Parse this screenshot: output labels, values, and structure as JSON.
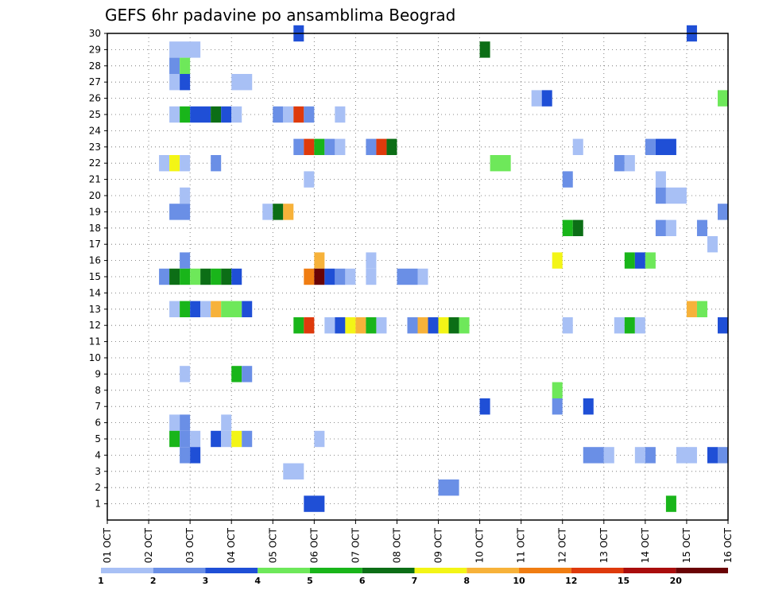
{
  "chart_data": {
    "type": "heatmap",
    "title": "GEFS 6hr padavine po ansamblima Beograd",
    "x_ticks": [
      "01 OCT",
      "02 OCT",
      "03 OCT",
      "04 OCT",
      "05 OCT",
      "06 OCT",
      "07 OCT",
      "08 OCT",
      "09 OCT",
      "10 OCT",
      "11 OCT",
      "12 OCT",
      "13 OCT",
      "14 OCT",
      "15 OCT",
      "16 OCT"
    ],
    "y_ticks": [
      "1",
      "2",
      "3",
      "4",
      "5",
      "6",
      "7",
      "8",
      "9",
      "10",
      "11",
      "12",
      "13",
      "14",
      "15",
      "16",
      "17",
      "18",
      "19",
      "20",
      "21",
      "22",
      "23",
      "24",
      "25",
      "26",
      "27",
      "28",
      "29",
      "30"
    ],
    "xlim_days": [
      1,
      16
    ],
    "ylim_members": [
      0,
      30
    ],
    "time_step_hours": 6,
    "grid": true,
    "legend_placement": "bottom",
    "color_levels": [
      {
        "label": "1",
        "color": "#a8c0f5"
      },
      {
        "label": "2",
        "color": "#6a8fe6"
      },
      {
        "label": "3",
        "color": "#1f4fd6"
      },
      {
        "label": "4",
        "color": "#6ee85a"
      },
      {
        "label": "5",
        "color": "#19b51a"
      },
      {
        "label": "6",
        "color": "#0c6e16"
      },
      {
        "label": "7",
        "color": "#f3f516"
      },
      {
        "label": "8",
        "color": "#f7b23a"
      },
      {
        "label": "10",
        "color": "#f07d12"
      },
      {
        "label": "12",
        "color": "#de3a0c"
      },
      {
        "label": "15",
        "color": "#a90d0c"
      },
      {
        "label": "20",
        "color": "#6a0305"
      }
    ],
    "note_cells": "Each cell: member (row), day start/end in fractional days since 01 OCT 00Z, color level index (0-11).",
    "cells": [
      {
        "m": 30,
        "d0": 5.5,
        "d1": 5.75,
        "c": 2
      },
      {
        "m": 30,
        "d0": 15.0,
        "d1": 15.25,
        "c": 2
      },
      {
        "m": 29,
        "d0": 2.5,
        "d1": 3.25,
        "c": 0
      },
      {
        "m": 29,
        "d0": 10.0,
        "d1": 10.25,
        "c": 5
      },
      {
        "m": 28,
        "d0": 2.5,
        "d1": 2.75,
        "c": 1
      },
      {
        "m": 28,
        "d0": 2.75,
        "d1": 3.0,
        "c": 3
      },
      {
        "m": 27,
        "d0": 2.5,
        "d1": 2.75,
        "c": 0
      },
      {
        "m": 27,
        "d0": 2.75,
        "d1": 3.0,
        "c": 2
      },
      {
        "m": 27,
        "d0": 4.0,
        "d1": 4.5,
        "c": 0
      },
      {
        "m": 26,
        "d0": 11.25,
        "d1": 11.5,
        "c": 0
      },
      {
        "m": 26,
        "d0": 11.5,
        "d1": 11.75,
        "c": 2
      },
      {
        "m": 26,
        "d0": 15.75,
        "d1": 16.0,
        "c": 3
      },
      {
        "m": 25,
        "d0": 2.5,
        "d1": 2.75,
        "c": 0
      },
      {
        "m": 25,
        "d0": 2.75,
        "d1": 3.0,
        "c": 4
      },
      {
        "m": 25,
        "d0": 3.0,
        "d1": 3.5,
        "c": 2
      },
      {
        "m": 25,
        "d0": 3.5,
        "d1": 3.75,
        "c": 5
      },
      {
        "m": 25,
        "d0": 3.75,
        "d1": 4.0,
        "c": 2
      },
      {
        "m": 25,
        "d0": 4.0,
        "d1": 4.25,
        "c": 0
      },
      {
        "m": 25,
        "d0": 5.0,
        "d1": 5.25,
        "c": 1
      },
      {
        "m": 25,
        "d0": 5.25,
        "d1": 5.5,
        "c": 0
      },
      {
        "m": 25,
        "d0": 5.5,
        "d1": 5.75,
        "c": 9
      },
      {
        "m": 25,
        "d0": 5.75,
        "d1": 6.0,
        "c": 1
      },
      {
        "m": 25,
        "d0": 6.5,
        "d1": 6.75,
        "c": 0
      },
      {
        "m": 23,
        "d0": 5.5,
        "d1": 5.75,
        "c": 1
      },
      {
        "m": 23,
        "d0": 5.75,
        "d1": 6.0,
        "c": 9
      },
      {
        "m": 23,
        "d0": 6.0,
        "d1": 6.25,
        "c": 4
      },
      {
        "m": 23,
        "d0": 6.25,
        "d1": 6.5,
        "c": 1
      },
      {
        "m": 23,
        "d0": 6.5,
        "d1": 6.75,
        "c": 0
      },
      {
        "m": 23,
        "d0": 7.25,
        "d1": 7.5,
        "c": 1
      },
      {
        "m": 23,
        "d0": 7.5,
        "d1": 7.75,
        "c": 9
      },
      {
        "m": 23,
        "d0": 7.75,
        "d1": 8.0,
        "c": 5
      },
      {
        "m": 23,
        "d0": 12.25,
        "d1": 12.5,
        "c": 0
      },
      {
        "m": 23,
        "d0": 14.0,
        "d1": 14.25,
        "c": 1
      },
      {
        "m": 23,
        "d0": 14.25,
        "d1": 14.75,
        "c": 2
      },
      {
        "m": 22,
        "d0": 2.25,
        "d1": 2.5,
        "c": 0
      },
      {
        "m": 22,
        "d0": 2.5,
        "d1": 2.75,
        "c": 6
      },
      {
        "m": 22,
        "d0": 2.75,
        "d1": 3.0,
        "c": 0
      },
      {
        "m": 22,
        "d0": 3.5,
        "d1": 3.75,
        "c": 1
      },
      {
        "m": 22,
        "d0": 10.25,
        "d1": 10.75,
        "c": 3
      },
      {
        "m": 22,
        "d0": 13.25,
        "d1": 13.5,
        "c": 1
      },
      {
        "m": 22,
        "d0": 13.5,
        "d1": 13.75,
        "c": 0
      },
      {
        "m": 21,
        "d0": 5.75,
        "d1": 6.0,
        "c": 0
      },
      {
        "m": 21,
        "d0": 12.0,
        "d1": 12.25,
        "c": 1
      },
      {
        "m": 21,
        "d0": 14.25,
        "d1": 14.5,
        "c": 0
      },
      {
        "m": 20,
        "d0": 2.75,
        "d1": 3.0,
        "c": 0
      },
      {
        "m": 20,
        "d0": 14.25,
        "d1": 14.5,
        "c": 1
      },
      {
        "m": 20,
        "d0": 14.5,
        "d1": 15.0,
        "c": 0
      },
      {
        "m": 19,
        "d0": 2.5,
        "d1": 3.0,
        "c": 1
      },
      {
        "m": 19,
        "d0": 4.75,
        "d1": 5.0,
        "c": 0
      },
      {
        "m": 19,
        "d0": 5.0,
        "d1": 5.25,
        "c": 5
      },
      {
        "m": 19,
        "d0": 5.25,
        "d1": 5.5,
        "c": 7
      },
      {
        "m": 19,
        "d0": 15.75,
        "d1": 16.0,
        "c": 1
      },
      {
        "m": 18,
        "d0": 12.0,
        "d1": 12.25,
        "c": 4
      },
      {
        "m": 18,
        "d0": 12.25,
        "d1": 12.5,
        "c": 5
      },
      {
        "m": 18,
        "d0": 14.25,
        "d1": 14.5,
        "c": 1
      },
      {
        "m": 18,
        "d0": 14.5,
        "d1": 14.75,
        "c": 0
      },
      {
        "m": 18,
        "d0": 15.25,
        "d1": 15.5,
        "c": 1
      },
      {
        "m": 17,
        "d0": 15.5,
        "d1": 15.75,
        "c": 0
      },
      {
        "m": 16,
        "d0": 2.75,
        "d1": 3.0,
        "c": 1
      },
      {
        "m": 16,
        "d0": 6.0,
        "d1": 6.25,
        "c": 7
      },
      {
        "m": 16,
        "d0": 7.25,
        "d1": 7.5,
        "c": 0
      },
      {
        "m": 16,
        "d0": 11.75,
        "d1": 12.0,
        "c": 6
      },
      {
        "m": 16,
        "d0": 13.5,
        "d1": 13.75,
        "c": 4
      },
      {
        "m": 16,
        "d0": 13.75,
        "d1": 14.0,
        "c": 2
      },
      {
        "m": 16,
        "d0": 14.0,
        "d1": 14.25,
        "c": 3
      },
      {
        "m": 15,
        "d0": 2.25,
        "d1": 2.5,
        "c": 1
      },
      {
        "m": 15,
        "d0": 2.5,
        "d1": 2.75,
        "c": 5
      },
      {
        "m": 15,
        "d0": 2.75,
        "d1": 3.0,
        "c": 4
      },
      {
        "m": 15,
        "d0": 3.0,
        "d1": 3.25,
        "c": 3
      },
      {
        "m": 15,
        "d0": 3.25,
        "d1": 3.5,
        "c": 5
      },
      {
        "m": 15,
        "d0": 3.5,
        "d1": 3.75,
        "c": 4
      },
      {
        "m": 15,
        "d0": 3.75,
        "d1": 4.0,
        "c": 5
      },
      {
        "m": 15,
        "d0": 4.0,
        "d1": 4.25,
        "c": 2
      },
      {
        "m": 15,
        "d0": 5.75,
        "d1": 6.0,
        "c": 8
      },
      {
        "m": 15,
        "d0": 6.0,
        "d1": 6.25,
        "c": 11
      },
      {
        "m": 15,
        "d0": 6.25,
        "d1": 6.5,
        "c": 2
      },
      {
        "m": 15,
        "d0": 6.5,
        "d1": 6.75,
        "c": 1
      },
      {
        "m": 15,
        "d0": 6.75,
        "d1": 7.0,
        "c": 0
      },
      {
        "m": 15,
        "d0": 7.25,
        "d1": 7.5,
        "c": 0
      },
      {
        "m": 15,
        "d0": 8.0,
        "d1": 8.5,
        "c": 1
      },
      {
        "m": 15,
        "d0": 8.5,
        "d1": 8.75,
        "c": 0
      },
      {
        "m": 13,
        "d0": 2.5,
        "d1": 2.75,
        "c": 0
      },
      {
        "m": 13,
        "d0": 2.75,
        "d1": 3.0,
        "c": 4
      },
      {
        "m": 13,
        "d0": 3.0,
        "d1": 3.25,
        "c": 2
      },
      {
        "m": 13,
        "d0": 3.25,
        "d1": 3.5,
        "c": 0
      },
      {
        "m": 13,
        "d0": 3.5,
        "d1": 3.75,
        "c": 7
      },
      {
        "m": 13,
        "d0": 3.75,
        "d1": 4.25,
        "c": 3
      },
      {
        "m": 13,
        "d0": 4.25,
        "d1": 4.5,
        "c": 2
      },
      {
        "m": 13,
        "d0": 15.0,
        "d1": 15.25,
        "c": 7
      },
      {
        "m": 13,
        "d0": 15.25,
        "d1": 15.5,
        "c": 3
      },
      {
        "m": 12,
        "d0": 5.5,
        "d1": 5.75,
        "c": 4
      },
      {
        "m": 12,
        "d0": 5.75,
        "d1": 6.0,
        "c": 9
      },
      {
        "m": 12,
        "d0": 6.25,
        "d1": 6.5,
        "c": 0
      },
      {
        "m": 12,
        "d0": 6.5,
        "d1": 6.75,
        "c": 2
      },
      {
        "m": 12,
        "d0": 6.75,
        "d1": 7.0,
        "c": 6
      },
      {
        "m": 12,
        "d0": 7.0,
        "d1": 7.25,
        "c": 7
      },
      {
        "m": 12,
        "d0": 7.25,
        "d1": 7.5,
        "c": 4
      },
      {
        "m": 12,
        "d0": 7.5,
        "d1": 7.75,
        "c": 0
      },
      {
        "m": 12,
        "d0": 8.25,
        "d1": 8.5,
        "c": 1
      },
      {
        "m": 12,
        "d0": 8.5,
        "d1": 8.75,
        "c": 7
      },
      {
        "m": 12,
        "d0": 8.75,
        "d1": 9.0,
        "c": 2
      },
      {
        "m": 12,
        "d0": 9.0,
        "d1": 9.25,
        "c": 6
      },
      {
        "m": 12,
        "d0": 9.25,
        "d1": 9.5,
        "c": 5
      },
      {
        "m": 12,
        "d0": 9.5,
        "d1": 9.75,
        "c": 3
      },
      {
        "m": 12,
        "d0": 12.0,
        "d1": 12.25,
        "c": 0
      },
      {
        "m": 12,
        "d0": 13.25,
        "d1": 13.5,
        "c": 0
      },
      {
        "m": 12,
        "d0": 13.5,
        "d1": 13.75,
        "c": 4
      },
      {
        "m": 12,
        "d0": 13.75,
        "d1": 14.0,
        "c": 0
      },
      {
        "m": 12,
        "d0": 15.75,
        "d1": 16.0,
        "c": 2
      },
      {
        "m": 9,
        "d0": 2.75,
        "d1": 3.0,
        "c": 0
      },
      {
        "m": 9,
        "d0": 4.0,
        "d1": 4.25,
        "c": 4
      },
      {
        "m": 9,
        "d0": 4.25,
        "d1": 4.5,
        "c": 1
      },
      {
        "m": 8,
        "d0": 11.75,
        "d1": 12.0,
        "c": 3
      },
      {
        "m": 7,
        "d0": 10.0,
        "d1": 10.25,
        "c": 2
      },
      {
        "m": 7,
        "d0": 11.75,
        "d1": 12.0,
        "c": 1
      },
      {
        "m": 7,
        "d0": 12.5,
        "d1": 12.75,
        "c": 2
      },
      {
        "m": 6,
        "d0": 2.5,
        "d1": 2.75,
        "c": 0
      },
      {
        "m": 6,
        "d0": 2.75,
        "d1": 3.0,
        "c": 1
      },
      {
        "m": 6,
        "d0": 3.75,
        "d1": 4.0,
        "c": 0
      },
      {
        "m": 5,
        "d0": 2.5,
        "d1": 2.75,
        "c": 4
      },
      {
        "m": 5,
        "d0": 2.75,
        "d1": 3.0,
        "c": 1
      },
      {
        "m": 5,
        "d0": 3.0,
        "d1": 3.25,
        "c": 0
      },
      {
        "m": 5,
        "d0": 3.5,
        "d1": 3.75,
        "c": 2
      },
      {
        "m": 5,
        "d0": 3.75,
        "d1": 4.0,
        "c": 0
      },
      {
        "m": 5,
        "d0": 4.0,
        "d1": 4.25,
        "c": 6
      },
      {
        "m": 5,
        "d0": 4.25,
        "d1": 4.5,
        "c": 1
      },
      {
        "m": 5,
        "d0": 6.0,
        "d1": 6.25,
        "c": 0
      },
      {
        "m": 4,
        "d0": 2.75,
        "d1": 3.0,
        "c": 1
      },
      {
        "m": 4,
        "d0": 3.0,
        "d1": 3.25,
        "c": 2
      },
      {
        "m": 4,
        "d0": 12.5,
        "d1": 13.0,
        "c": 1
      },
      {
        "m": 4,
        "d0": 13.0,
        "d1": 13.25,
        "c": 0
      },
      {
        "m": 4,
        "d0": 13.75,
        "d1": 14.0,
        "c": 0
      },
      {
        "m": 4,
        "d0": 14.0,
        "d1": 14.25,
        "c": 1
      },
      {
        "m": 4,
        "d0": 14.75,
        "d1": 15.25,
        "c": 0
      },
      {
        "m": 4,
        "d0": 15.5,
        "d1": 15.75,
        "c": 2
      },
      {
        "m": 4,
        "d0": 15.75,
        "d1": 16.0,
        "c": 1
      },
      {
        "m": 3,
        "d0": 5.25,
        "d1": 5.75,
        "c": 0
      },
      {
        "m": 2,
        "d0": 9.0,
        "d1": 9.5,
        "c": 1
      },
      {
        "m": 1,
        "d0": 5.75,
        "d1": 6.25,
        "c": 2
      },
      {
        "m": 1,
        "d0": 14.5,
        "d1": 14.75,
        "c": 4
      }
    ]
  }
}
